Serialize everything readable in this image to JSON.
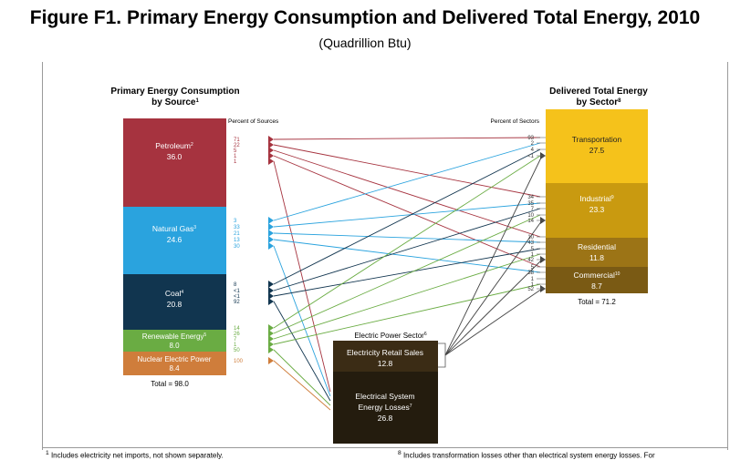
{
  "title": "Figure F1. Primary Energy Consumption and Delivered Total Energy, 2010",
  "subtitle": "(Quadrillion Btu)",
  "primary": {
    "heading_line1": "Primary Energy Consumption",
    "heading_line2": "by Source",
    "heading_sup": "1",
    "percent_label": "Percent of Sources",
    "total": "Total = 98.0",
    "sources": [
      {
        "key": "petroleum",
        "name": "Petroleum",
        "sup": "2",
        "value": "36.0",
        "color": "#a6333f",
        "percents": [
          "71",
          "22",
          "5",
          "1",
          "1"
        ]
      },
      {
        "key": "natural-gas",
        "name": "Natural Gas",
        "sup": "3",
        "value": "24.6",
        "color": "#2aa3de",
        "percents": [
          "3",
          "33",
          "21",
          "13",
          "30"
        ]
      },
      {
        "key": "coal",
        "name": "Coal",
        "sup": "4",
        "value": "20.8",
        "color": "#11354f",
        "percents": [
          "8",
          "<1",
          "<1",
          "92"
        ]
      },
      {
        "key": "renewable",
        "name": "Renewable Energy",
        "sup": "5",
        "value": "8.0",
        "color": "#6aac43",
        "percents": [
          "14",
          "26",
          "7",
          "1",
          "50"
        ]
      },
      {
        "key": "nuclear",
        "name": "Nuclear Electric Power",
        "sup": "",
        "value": "8.4",
        "color": "#cf7d3b",
        "percents": [
          "100"
        ]
      }
    ]
  },
  "delivered": {
    "heading_line1": "Delivered Total Energy",
    "heading_line2": "by Sector",
    "heading_sup": "8",
    "percent_label": "Percent of Sectors",
    "total": "Total = 71.2",
    "sectors": [
      {
        "key": "transportation",
        "name": "Transportation",
        "sup": "",
        "value": "27.5",
        "color": "#f5c21b",
        "percents": [
          "93",
          "2",
          "4",
          "<1"
        ]
      },
      {
        "key": "industrial",
        "name": "Industrial",
        "sup": "9",
        "value": "23.3",
        "color": "#c99a10",
        "percents": [
          "34",
          "35",
          "7",
          "10",
          "14"
        ]
      },
      {
        "key": "residential",
        "name": "Residential",
        "sup": "",
        "value": "11.8",
        "color": "#9c7416",
        "percents": [
          "10",
          "43",
          "5",
          "1",
          "42"
        ]
      },
      {
        "key": "commercial",
        "name": "Commercial",
        "sup": "10",
        "value": "8.7",
        "color": "#7a5a14",
        "percents": [
          "5",
          "38",
          "1",
          "1",
          "52"
        ]
      }
    ]
  },
  "electric": {
    "heading": "Electric Power Sector",
    "heading_sup": "6",
    "retail_name": "Electricity Retail Sales",
    "retail_value": "12.8",
    "losses_line1": "Electrical System",
    "losses_line2": "Energy Losses",
    "losses_sup": "7",
    "losses_value": "26.8",
    "retail_color": "#3b2c15",
    "losses_color": "#241c0e"
  },
  "footnotes": {
    "fn1": "Includes electricity net imports, not shown separately.",
    "fn1_mark": "1",
    "fn8": "Includes transformation losses other than electrical system energy losses.  For",
    "fn8_mark": "8"
  }
}
